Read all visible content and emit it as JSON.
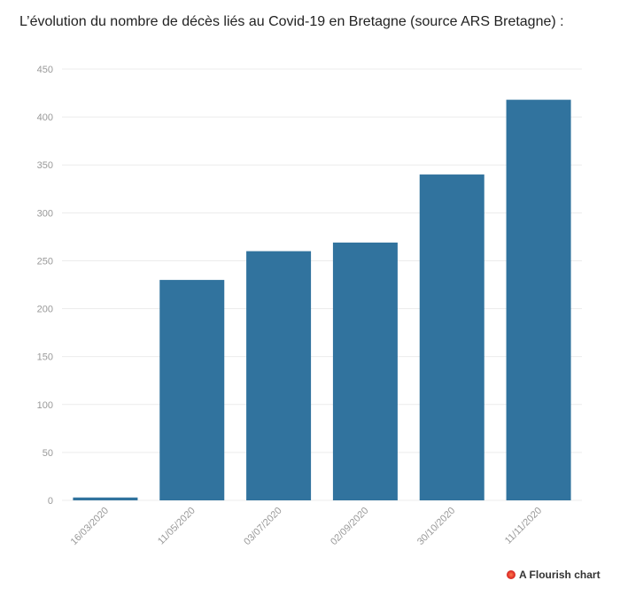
{
  "title": "L’évolution du nombre de décès liés au Covid-19 en Bretagne (source ARS Bretagne) :",
  "footer": {
    "label": "A Flourish chart"
  },
  "colors": {
    "bar": "#31739e",
    "grid": "#ececec",
    "axis_text": "#999999"
  },
  "chart_data": {
    "type": "bar",
    "categories": [
      "16/03/2020",
      "11/05/2020",
      "03/07/2020",
      "02/09/2020",
      "30/10/2020",
      "11/11/2020"
    ],
    "values": [
      3,
      230,
      260,
      269,
      340,
      418
    ],
    "ylim": [
      0,
      450
    ],
    "yticks": [
      0,
      50,
      100,
      150,
      200,
      250,
      300,
      350,
      400,
      450
    ],
    "grid": true,
    "legend": false,
    "xlabel": "",
    "ylabel": ""
  }
}
